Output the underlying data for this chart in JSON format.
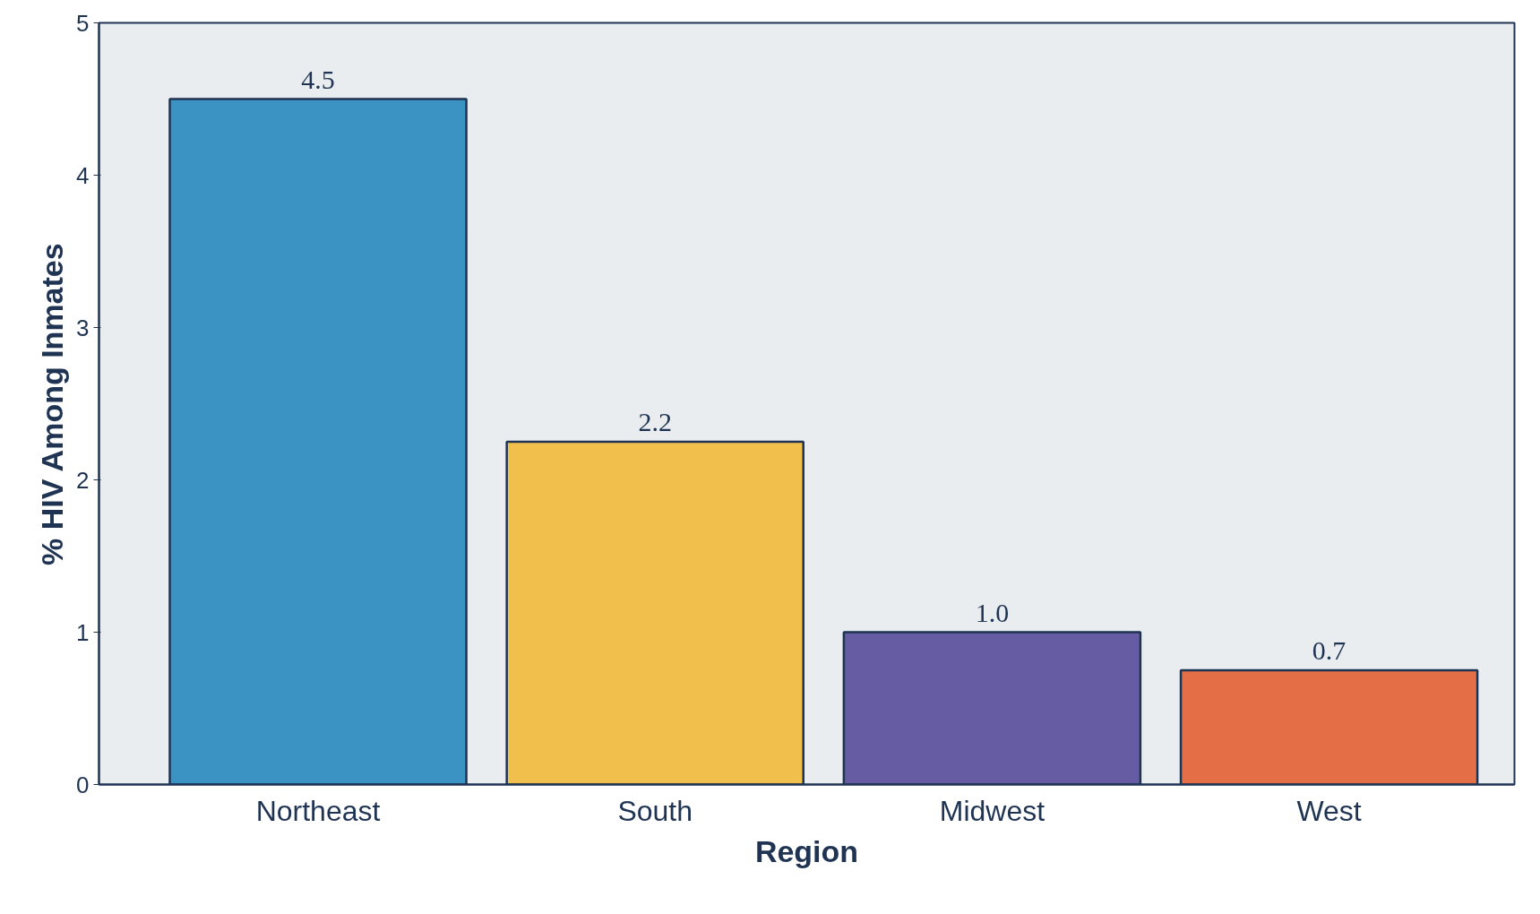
{
  "chart_data": {
    "type": "bar",
    "xlabel": "Region",
    "ylabel": "% HIV Among Inmates",
    "categories": [
      "Northeast",
      "South",
      "Midwest",
      "West"
    ],
    "values": [
      4.5,
      2.25,
      1.0,
      0.75
    ],
    "value_labels": [
      "4.5",
      "2.2",
      "1.0",
      "0.7"
    ],
    "colors": [
      "#3a93c3",
      "#f0bf4c",
      "#665ca3",
      "#e46f46"
    ],
    "ylim": [
      0,
      5
    ],
    "yticks": [
      0,
      1,
      2,
      3,
      4,
      5
    ],
    "grid": false
  }
}
